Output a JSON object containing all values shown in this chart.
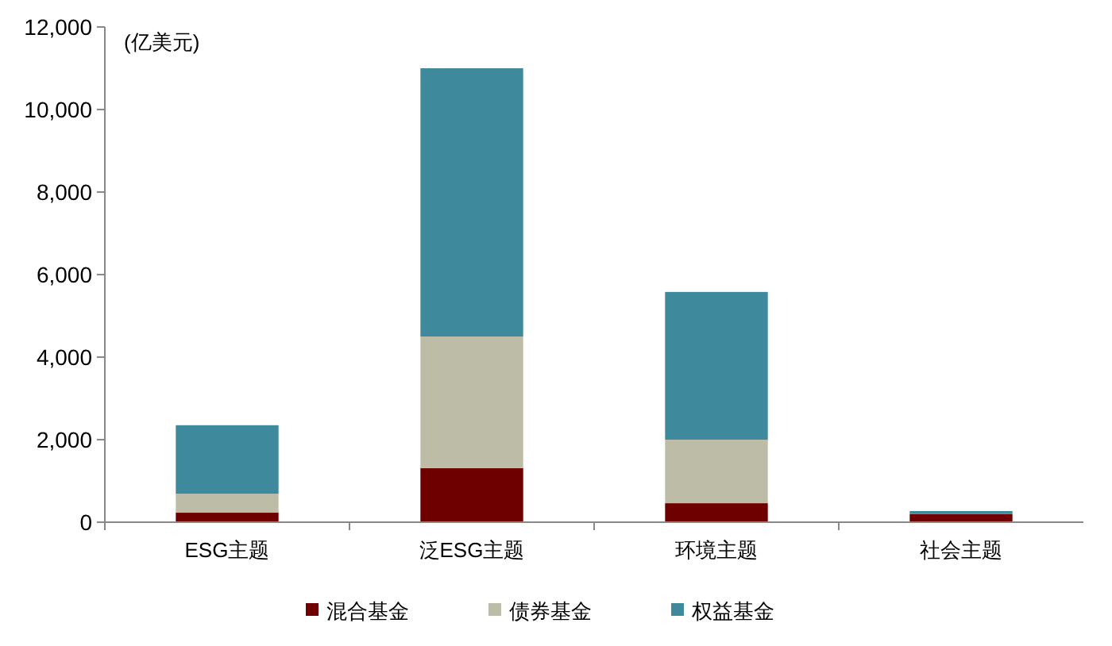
{
  "chart_data": {
    "type": "bar",
    "ylabel": "(亿美元)",
    "categories": [
      "ESG主题",
      "泛ESG主题",
      "环境主题",
      "社会主题"
    ],
    "series": [
      {
        "name": "混合基金",
        "color": "#6e0000",
        "values": [
          230,
          1310,
          460,
          200
        ]
      },
      {
        "name": "债券基金",
        "color": "#bdbca7",
        "values": [
          460,
          3190,
          1540,
          null
        ]
      },
      {
        "name": "权益基金",
        "color": "#3e8a9c",
        "values": [
          1660,
          6500,
          3580,
          70
        ]
      }
    ],
    "stacked": true,
    "ylim": [
      0,
      12000
    ],
    "yticks": [
      {
        "value": 0,
        "label": "0"
      },
      {
        "value": 2000,
        "label": "2,000"
      },
      {
        "value": 4000,
        "label": "4,000"
      },
      {
        "value": 6000,
        "label": "6,000"
      },
      {
        "value": 8000,
        "label": "8,000"
      },
      {
        "value": 10000,
        "label": "10,000"
      },
      {
        "value": 12000,
        "label": "12,000"
      }
    ],
    "grid": false,
    "legend": "bottom"
  }
}
